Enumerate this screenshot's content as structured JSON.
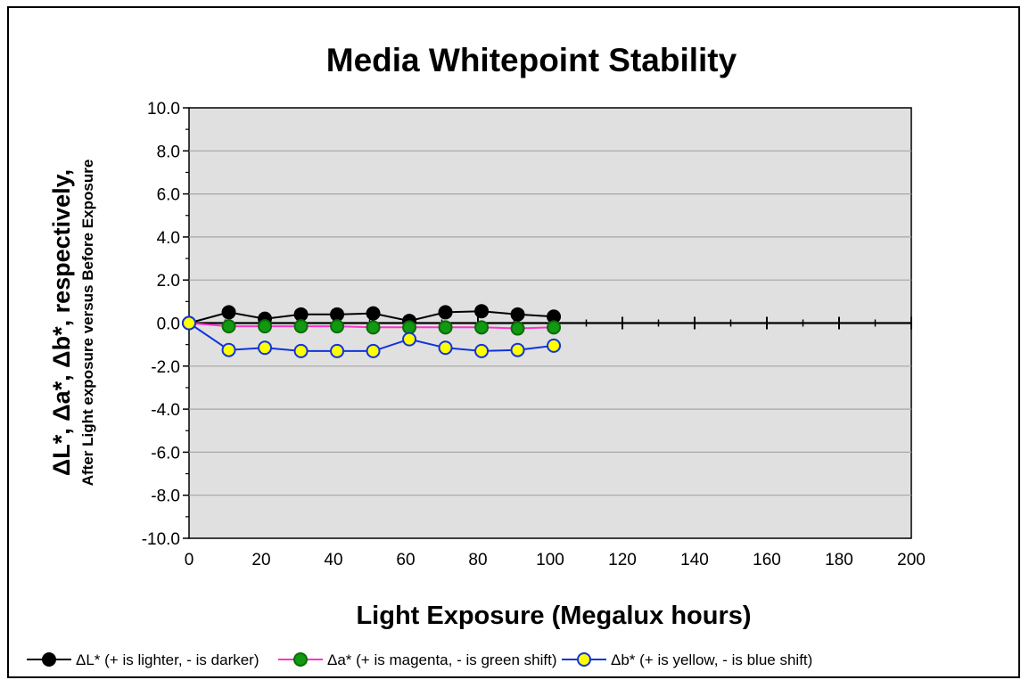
{
  "chart_data": {
    "type": "line",
    "title": "Media Whitepoint Stability",
    "ylabel": "ΔL*, Δa*, Δb*,  respectively,",
    "ylabel_sub": "After Light exposure versus Before Exposure",
    "xlabel": "Light Exposure (Megalux hours)",
    "xlim": [
      0,
      200
    ],
    "ylim": [
      -10,
      10
    ],
    "x_major_ticks": [
      0,
      20,
      40,
      60,
      80,
      100,
      120,
      140,
      160,
      180,
      200
    ],
    "x_tick_labels": [
      "0",
      "20",
      "40",
      "60",
      "80",
      "100",
      "120",
      "140",
      "160",
      "180",
      "200"
    ],
    "x_minor_ticks": [
      10,
      30,
      50,
      70,
      90,
      110,
      130,
      150,
      170,
      190
    ],
    "y_major_ticks": [
      -10,
      -8,
      -6,
      -4,
      -2,
      0,
      2,
      4,
      6,
      8,
      10
    ],
    "y_tick_labels": [
      "-10.0",
      "-8.0",
      "-6.0",
      "-4.0",
      "-2.0",
      "0.0",
      "2.0",
      "4.0",
      "6.0",
      "8.0",
      "10.0"
    ],
    "y_minor_ticks": [
      -9,
      -7,
      -5,
      -3,
      -1,
      1,
      3,
      5,
      7,
      9
    ],
    "grid": true,
    "legend_position": "bottom",
    "plot_background": "#e0e0e0",
    "series": [
      {
        "name": "ΔL* (+ is lighter, - is darker)",
        "line_color": "#000000",
        "marker_fill": "#000000",
        "marker_stroke": "#000000",
        "x": [
          0,
          11,
          21,
          31,
          41,
          51,
          61,
          71,
          81,
          91,
          101
        ],
        "values": [
          0.0,
          0.5,
          0.2,
          0.4,
          0.4,
          0.45,
          0.1,
          0.5,
          0.55,
          0.4,
          0.3
        ]
      },
      {
        "name": "Δa* (+ is magenta, - is green shift)",
        "line_color": "#ff33cc",
        "marker_fill": "#119911",
        "marker_stroke": "#0a6b0a",
        "x": [
          0,
          11,
          21,
          31,
          41,
          51,
          61,
          71,
          81,
          91,
          101
        ],
        "values": [
          0.0,
          -0.15,
          -0.15,
          -0.15,
          -0.15,
          -0.2,
          -0.2,
          -0.2,
          -0.2,
          -0.25,
          -0.2
        ]
      },
      {
        "name": "Δb* (+ is yellow, - is blue shift)",
        "line_color": "#1133dd",
        "marker_fill": "#ffff00",
        "marker_stroke": "#1133dd",
        "x": [
          0,
          11,
          21,
          31,
          41,
          51,
          61,
          71,
          81,
          91,
          101
        ],
        "values": [
          0.0,
          -1.25,
          -1.15,
          -1.3,
          -1.3,
          -1.3,
          -0.75,
          -1.15,
          -1.3,
          -1.25,
          -1.05
        ]
      }
    ]
  }
}
